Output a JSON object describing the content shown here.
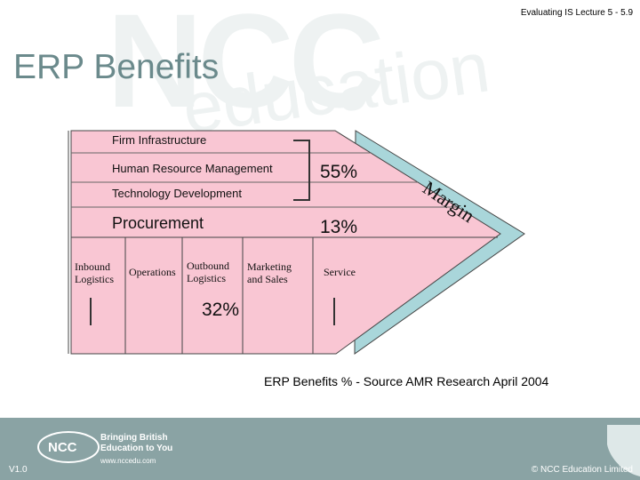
{
  "header": {
    "lecture_ref": "Evaluating IS Lecture 5 - 5.9"
  },
  "slide": {
    "title": "ERP Benefits"
  },
  "value_chain": {
    "support": {
      "firm_infrastructure": "Firm Infrastructure",
      "hrm": "Human Resource Management",
      "technology": "Technology Development",
      "procurement": "Procurement"
    },
    "primary": {
      "inbound": "Inbound Logistics",
      "operations": "Operations",
      "outbound": "Outbound Logistics",
      "marketing": "Marketing and Sales",
      "service": "Service"
    },
    "percentages": {
      "support_upper": "55%",
      "support_lower": "13%",
      "primary": "32%"
    },
    "margin_label": "Margin",
    "colors": {
      "activity_fill": "#f9c6d3",
      "margin_fill": "#a9d6da",
      "border": "#444444"
    }
  },
  "caption": "ERP Benefits % - Source AMR Research April 2004",
  "footer": {
    "version": "V1.0",
    "copyright": "© NCC Education Limited",
    "tagline": "Bringing British Education to You",
    "url": "www.nccedu.com",
    "logo_text": "NCC"
  }
}
